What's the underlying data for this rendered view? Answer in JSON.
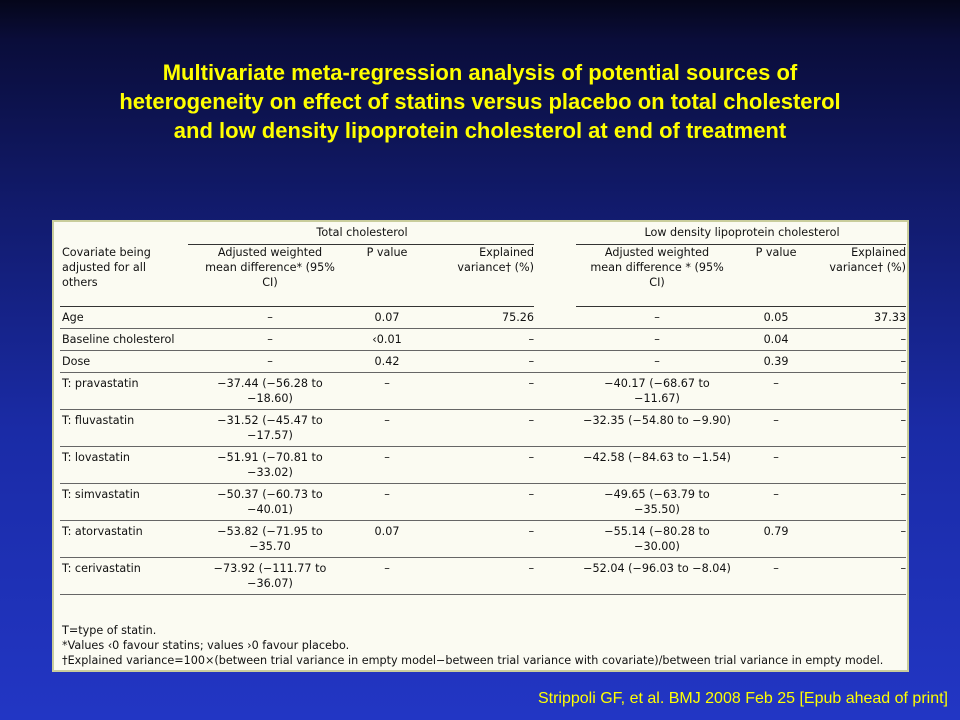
{
  "title": {
    "lines": [
      "Multivariate meta-regression analysis of potential sources of",
      "heterogeneity on effect of statins versus placebo on total cholesterol",
      "and  low density lipoprotein  cholesterol at  end  of treatment"
    ]
  },
  "table": {
    "group_headers": {
      "total": "Total cholesterol",
      "ldl": "Low density lipoprotein cholesterol"
    },
    "column_headers": {
      "covariate": [
        "Covariate being",
        "adjusted for all",
        "others"
      ],
      "tc_wmd": [
        "Adjusted weighted",
        "mean difference* (95%",
        "CI)"
      ],
      "tc_p": "P value",
      "tc_ev": [
        "Explained",
        "variance† (%)"
      ],
      "ldl_wmd": [
        "Adjusted weighted",
        "mean difference * (95%",
        "CI)"
      ],
      "ldl_p": "P value",
      "ldl_ev": [
        "Explained",
        "variance† (%)"
      ]
    },
    "rows": [
      {
        "covariate": "Age",
        "tc_wmd": [
          "–"
        ],
        "tc_p": "0.07",
        "tc_ev": "75.26",
        "ldl_wmd": [
          "–"
        ],
        "ldl_p": "0.05",
        "ldl_ev": "37.33"
      },
      {
        "covariate": "Baseline cholesterol",
        "tc_wmd": [
          "–"
        ],
        "tc_p": "‹0.01",
        "tc_ev": "–",
        "ldl_wmd": [
          "–"
        ],
        "ldl_p": "0.04",
        "ldl_ev": "–"
      },
      {
        "covariate": "Dose",
        "tc_wmd": [
          "–"
        ],
        "tc_p": "0.42",
        "tc_ev": "–",
        "ldl_wmd": [
          "–"
        ],
        "ldl_p": "0.39",
        "ldl_ev": "–"
      },
      {
        "covariate": "T: pravastatin",
        "tc_wmd": [
          "−37.44 (−56.28 to",
          "−18.60)"
        ],
        "tc_p": "–",
        "tc_ev": "–",
        "ldl_wmd": [
          "−40.17 (−68.67 to",
          "−11.67)"
        ],
        "ldl_p": "–",
        "ldl_ev": "–"
      },
      {
        "covariate": "T: fluvastatin",
        "tc_wmd": [
          "−31.52 (−45.47 to",
          "−17.57)"
        ],
        "tc_p": "–",
        "tc_ev": "–",
        "ldl_wmd": [
          "−32.35 (−54.80 to −9.90)"
        ],
        "ldl_p": "–",
        "ldl_ev": "–"
      },
      {
        "covariate": "T: lovastatin",
        "tc_wmd": [
          "−51.91 (−70.81 to",
          "−33.02)"
        ],
        "tc_p": "–",
        "tc_ev": "–",
        "ldl_wmd": [
          "−42.58 (−84.63 to −1.54)"
        ],
        "ldl_p": "–",
        "ldl_ev": "–"
      },
      {
        "covariate": "T: simvastatin",
        "tc_wmd": [
          "−50.37 (−60.73 to",
          "−40.01)"
        ],
        "tc_p": "–",
        "tc_ev": "–",
        "ldl_wmd": [
          "−49.65 (−63.79 to",
          "−35.50)"
        ],
        "ldl_p": "–",
        "ldl_ev": "–"
      },
      {
        "covariate": "T: atorvastatin",
        "tc_wmd": [
          "−53.82 (−71.95 to",
          "−35.70"
        ],
        "tc_p": "0.07",
        "tc_ev": "–",
        "ldl_wmd": [
          "−55.14 (−80.28 to",
          "−30.00)"
        ],
        "ldl_p": "0.79",
        "ldl_ev": "–"
      },
      {
        "covariate": "T: cerivastatin",
        "tc_wmd": [
          "−73.92 (−111.77 to",
          "−36.07)"
        ],
        "tc_p": "–",
        "tc_ev": "–",
        "ldl_wmd": [
          "−52.04 (−96.03 to −8.04)"
        ],
        "ldl_p": "–",
        "ldl_ev": "–"
      }
    ],
    "footnotes": [
      "T=type of statin.",
      "*Values ‹0 favour statins; values ›0 favour placebo.",
      "†Explained variance=100×(between trial variance in empty model−between trial variance with covariate)/between trial variance in empty model."
    ]
  },
  "citation": "Strippoli GF, et al. BMJ 2008 Feb 25 [Epub ahead of print]"
}
